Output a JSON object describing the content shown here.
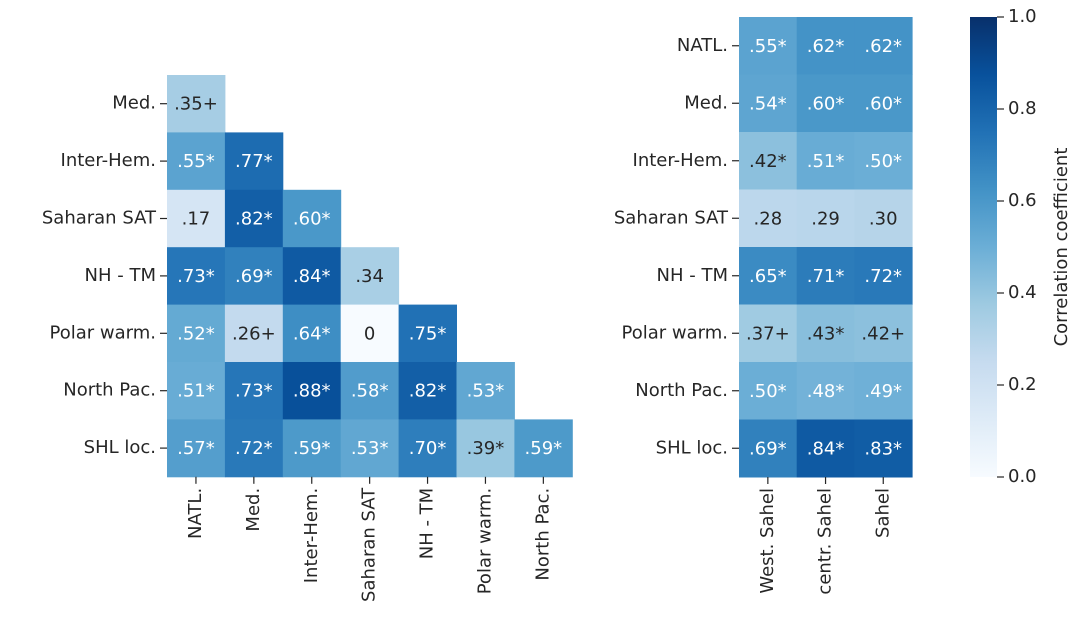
{
  "chart_data": [
    {
      "type": "heatmap",
      "rows": [
        "Med.",
        "Inter-Hem.",
        "Saharan SAT",
        "NH - TM",
        "Polar warm.",
        "North Pac.",
        "SHL loc."
      ],
      "columns": [
        "NATL.",
        "Med.",
        "Inter-Hem.",
        "Saharan SAT",
        "NH - TM",
        "Polar warm.",
        "North Pac."
      ],
      "values": [
        [
          0.35
        ],
        [
          0.55,
          0.77
        ],
        [
          0.17,
          0.82,
          0.6
        ],
        [
          0.73,
          0.69,
          0.84,
          0.34
        ],
        [
          0.52,
          0.26,
          0.64,
          0,
          0.75
        ],
        [
          0.51,
          0.73,
          0.88,
          0.58,
          0.82,
          0.53
        ],
        [
          0.57,
          0.72,
          0.59,
          0.53,
          0.7,
          0.39,
          0.59
        ]
      ],
      "value_labels": [
        [
          ".35+"
        ],
        [
          ".55*",
          ".77*"
        ],
        [
          ".17",
          ".82*",
          ".60*"
        ],
        [
          ".73*",
          ".69*",
          ".84*",
          ".34"
        ],
        [
          ".52*",
          ".26+",
          ".64*",
          "0",
          ".75*"
        ],
        [
          ".51*",
          ".73*",
          ".88*",
          ".58*",
          ".82*",
          ".53*"
        ],
        [
          ".57*",
          ".72*",
          ".59*",
          ".53*",
          ".70*",
          ".39*",
          ".59*"
        ]
      ]
    },
    {
      "type": "heatmap",
      "rows": [
        "NATL.",
        "Med.",
        "Inter-Hem.",
        "Saharan SAT",
        "NH - TM",
        "Polar warm.",
        "North Pac.",
        "SHL loc."
      ],
      "columns": [
        "West. Sahel",
        "centr. Sahel",
        "Sahel"
      ],
      "values": [
        [
          0.55,
          0.62,
          0.62
        ],
        [
          0.54,
          0.6,
          0.6
        ],
        [
          0.42,
          0.51,
          0.5
        ],
        [
          0.28,
          0.29,
          0.3
        ],
        [
          0.65,
          0.71,
          0.72
        ],
        [
          0.37,
          0.43,
          0.42
        ],
        [
          0.5,
          0.48,
          0.49
        ],
        [
          0.69,
          0.84,
          0.83
        ]
      ],
      "value_labels": [
        [
          ".55*",
          ".62*",
          ".62*"
        ],
        [
          ".54*",
          ".60*",
          ".60*"
        ],
        [
          ".42*",
          ".51*",
          ".50*"
        ],
        [
          ".28",
          ".29",
          ".30"
        ],
        [
          ".65*",
          ".71*",
          ".72*"
        ],
        [
          ".37+",
          ".43*",
          ".42+"
        ],
        [
          ".50*",
          ".48*",
          ".49*"
        ],
        [
          ".69*",
          ".84*",
          ".83*"
        ]
      ]
    }
  ],
  "colorbar": {
    "label": "Correlation coefficient",
    "cmap": "Blues",
    "lim": [
      0,
      1
    ],
    "ticks": [
      {
        "value": 0,
        "label": "0.0"
      },
      0.2,
      0.4,
      0.6,
      0.8,
      {
        "value": 1,
        "label": "1.0"
      }
    ]
  }
}
